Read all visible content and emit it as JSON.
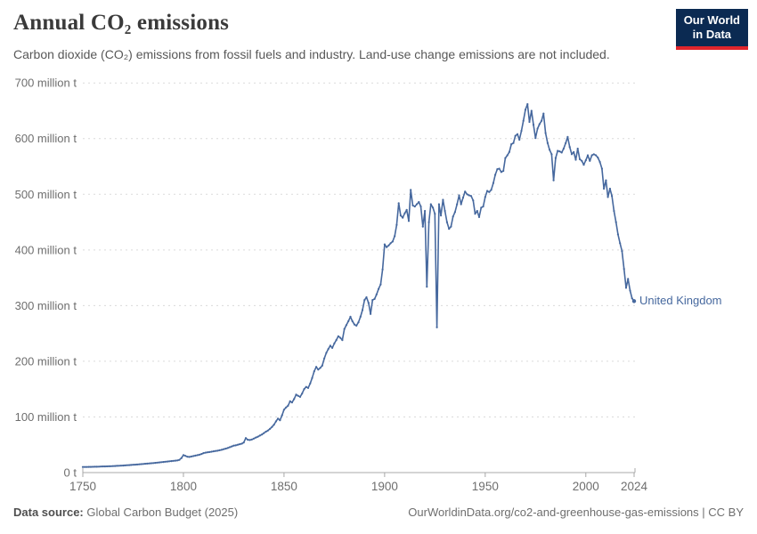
{
  "header": {
    "title": "Annual CO₂ emissions",
    "subtitle": "Carbon dioxide (CO₂) emissions from fossil fuels and industry. Land-use change emissions are not included.",
    "logo_line1": "Our World",
    "logo_line2": "in Data"
  },
  "annotation": {
    "series_label": "United Kingdom"
  },
  "footer": {
    "source_bold": "Data source:",
    "source_text": " Global Carbon Budget (2025)",
    "attribution": "OurWorldinData.org/co2-and-greenhouse-gas-emissions | CC BY"
  },
  "colors": {
    "line": "#46689e",
    "grid": "#dadada",
    "axis": "#a8a8a8",
    "tick_text": "#6e6e6e",
    "logo_bg": "#0b2a52",
    "logo_red": "#e0252b"
  },
  "chart_data": {
    "type": "line",
    "title": "Annual CO₂ emissions",
    "entity": "United Kingdom",
    "unit": "million tonnes of CO₂",
    "xlim": [
      1750,
      2024
    ],
    "ylim": [
      0,
      700
    ],
    "grid": true,
    "legend": "end-of-line label",
    "x_ticks": [
      1750,
      1800,
      1850,
      1900,
      1950,
      2000,
      2024
    ],
    "y_ticks": [
      {
        "v": 0,
        "label": "0 t"
      },
      {
        "v": 100,
        "label": "100 million t"
      },
      {
        "v": 200,
        "label": "200 million t"
      },
      {
        "v": 300,
        "label": "300 million t"
      },
      {
        "v": 400,
        "label": "400 million t"
      },
      {
        "v": 500,
        "label": "500 million t"
      },
      {
        "v": 600,
        "label": "600 million t"
      },
      {
        "v": 700,
        "label": "700 million t"
      }
    ],
    "series": [
      {
        "name": "United Kingdom",
        "start_year": 1750,
        "end_year": 2024,
        "values": [
          10,
          10.1,
          10.1,
          10.2,
          10.3,
          10.4,
          10.5,
          10.6,
          10.7,
          10.8,
          11,
          11.1,
          11.2,
          11.4,
          11.5,
          11.7,
          11.9,
          12.1,
          12.3,
          12.5,
          12.7,
          12.9,
          13.2,
          13.4,
          13.7,
          14,
          14.3,
          14.6,
          14.9,
          15.2,
          15.5,
          15.8,
          16.1,
          16.4,
          16.8,
          17.1,
          17.5,
          17.9,
          18.3,
          18.7,
          19.1,
          19.5,
          19.9,
          20.3,
          20.7,
          21.1,
          21.5,
          21.9,
          22.8,
          26,
          31.5,
          30,
          28.5,
          28.2,
          29,
          29.8,
          30.6,
          31.4,
          32.2,
          33.4,
          35,
          35.8,
          36.4,
          37,
          37.6,
          38.2,
          38.8,
          39.4,
          40.2,
          41,
          42,
          43,
          44.2,
          45.5,
          47,
          48.5,
          49,
          50,
          51,
          52,
          54,
          62,
          59,
          58.5,
          59.5,
          61,
          63,
          64.5,
          66.5,
          68.5,
          71,
          73.5,
          75.5,
          78.5,
          82,
          86,
          92,
          97,
          94,
          103,
          113,
          117,
          120,
          128,
          126,
          132,
          140,
          138,
          136,
          142,
          150,
          154,
          152,
          160,
          170,
          182,
          190,
          185,
          188,
          192,
          205,
          215,
          222,
          228,
          224,
          232,
          238,
          245,
          242,
          238,
          258,
          265,
          272,
          280,
          272,
          266,
          264,
          270,
          280,
          292,
          310,
          315,
          305,
          285,
          310,
          312,
          320,
          330,
          338,
          365,
          410,
          405,
          408,
          412,
          415,
          425,
          445,
          484,
          462,
          458,
          466,
          472,
          452,
          508,
          480,
          478,
          482,
          486,
          478,
          442,
          470,
          334,
          450,
          482,
          476,
          465,
          261,
          482,
          462,
          490,
          470,
          450,
          438,
          442,
          460,
          468,
          482,
          498,
          482,
          494,
          505,
          500,
          498,
          497,
          489,
          465,
          470,
          459,
          476,
          478,
          495,
          506,
          504,
          508,
          520,
          535,
          545,
          546,
          540,
          542,
          565,
          570,
          576,
          590,
          592,
          605,
          608,
          598,
          614,
          632,
          652,
          662,
          630,
          650,
          625,
          601,
          618,
          626,
          632,
          645,
          610,
          592,
          580,
          572,
          525,
          565,
          578,
          577,
          575,
          582,
          592,
          603,
          585,
          572,
          576,
          562,
          582,
          563,
          560,
          553,
          561,
          570,
          560,
          570,
          572,
          570,
          566,
          558,
          546,
          510,
          525,
          495,
          510,
          497,
          470,
          450,
          428,
          412,
          398,
          366,
          332,
          348,
          327,
          313,
          308
        ]
      }
    ]
  }
}
